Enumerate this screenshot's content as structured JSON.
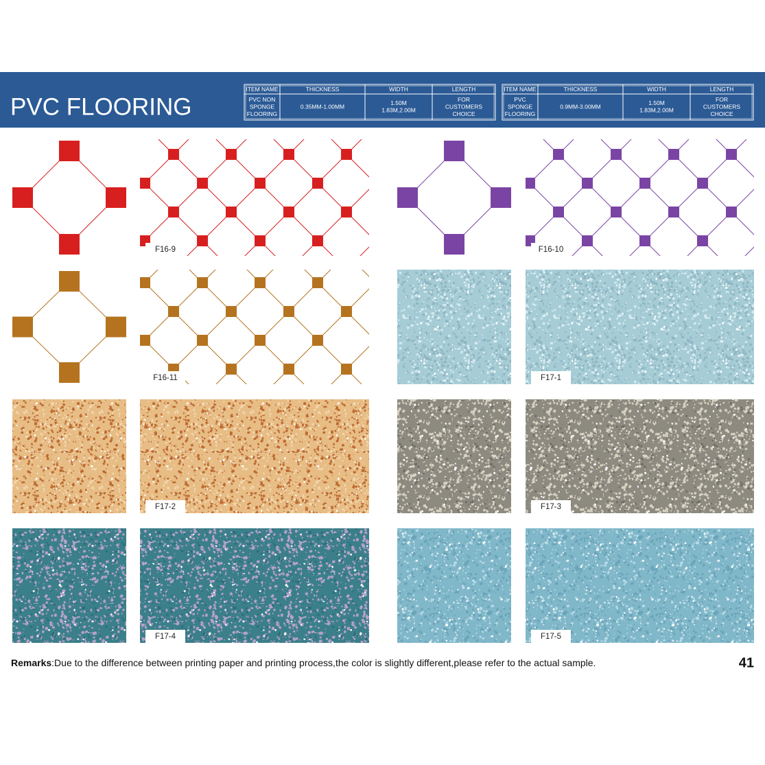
{
  "header": {
    "title": "PVC FLOORING"
  },
  "tables": [
    {
      "columns": [
        "ITEM NAME",
        "THICKNESS",
        "WIDTH",
        "LENGTH"
      ],
      "row": [
        [
          "PVC NON",
          "SPONGE",
          "FLOORING"
        ],
        [
          "0.35MM-1.00MM"
        ],
        [
          "1.50M",
          "1.83M,2.00M"
        ],
        [
          "FOR",
          "CUSTOMERS",
          "CHOICE"
        ]
      ]
    },
    {
      "columns": [
        "ITEM NAME",
        "THICKNESS",
        "WIDTH",
        "LENGTH"
      ],
      "row": [
        [
          "PVC",
          "SPONGE",
          "FLOORING"
        ],
        [
          "0.9MM-3.00MM"
        ],
        [
          "1.50M",
          "1.83M,2.00M"
        ],
        [
          "FOR",
          "CUSTOMERS",
          "CHOICE"
        ]
      ]
    }
  ],
  "samples": [
    {
      "code": "F16-9"
    },
    {
      "code": "F16-10"
    },
    {
      "code": "F16-11"
    },
    {
      "code": "F17-1"
    },
    {
      "code": "F17-2"
    },
    {
      "code": "F17-3"
    },
    {
      "code": "F17-4"
    },
    {
      "code": "F17-5"
    }
  ],
  "remarks": {
    "label": "Remarks",
    "text": ":Due to the difference between printing paper and printing process,the color is slightly different,please refer to the actual sample."
  },
  "page_number": "41"
}
